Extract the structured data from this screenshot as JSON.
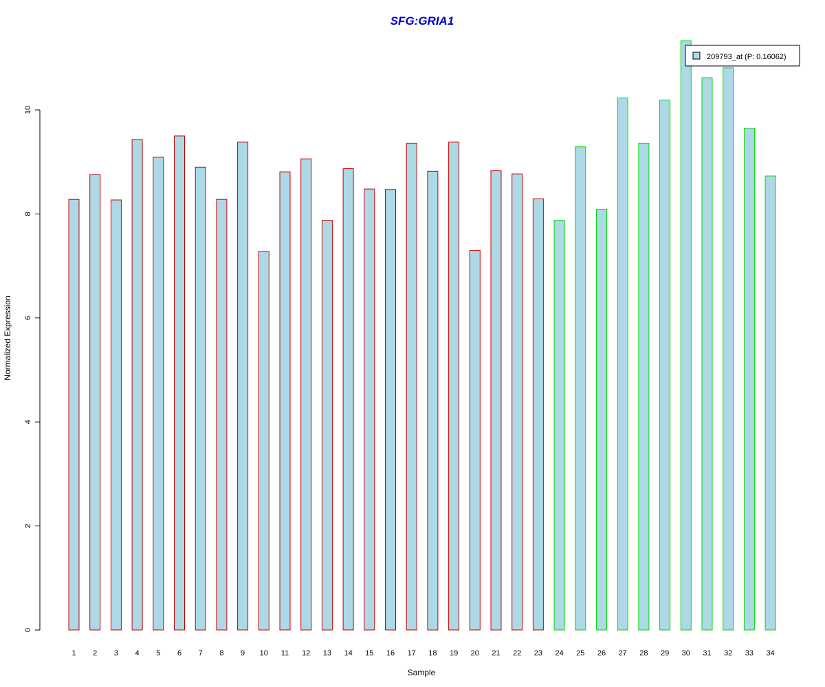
{
  "chart_data": {
    "type": "bar",
    "title": "SFG:GRIA1",
    "xlabel": "Sample",
    "ylabel": "Normalized Expression",
    "ylim": [
      0,
      11.4
    ],
    "yticks": [
      0,
      2,
      4,
      6,
      8,
      10
    ],
    "grid": false,
    "legend_position": "top-right",
    "categories": [
      "1",
      "2",
      "3",
      "4",
      "5",
      "6",
      "7",
      "8",
      "9",
      "10",
      "11",
      "12",
      "13",
      "14",
      "15",
      "16",
      "17",
      "18",
      "19",
      "20",
      "21",
      "22",
      "23",
      "24",
      "25",
      "26",
      "27",
      "28",
      "29",
      "30",
      "31",
      "32",
      "33",
      "34"
    ],
    "series": [
      {
        "name": "209793_at (P: 0.16062)",
        "values": [
          8.28,
          8.76,
          8.27,
          9.43,
          9.09,
          9.5,
          8.9,
          8.28,
          9.38,
          7.28,
          8.81,
          9.06,
          7.88,
          8.87,
          8.48,
          8.47,
          9.36,
          8.82,
          9.38,
          7.3,
          8.83,
          8.77,
          8.29,
          7.88,
          9.29,
          8.09,
          10.23,
          9.36,
          10.19,
          11.33,
          10.62,
          10.81,
          9.65,
          8.73
        ]
      }
    ],
    "group_borders": [
      "#cc0000",
      "#cc0000",
      "#cc0000",
      "#cc0000",
      "#cc0000",
      "#cc0000",
      "#cc0000",
      "#cc0000",
      "#cc0000",
      "#cc0000",
      "#cc0000",
      "#cc0000",
      "#cc0000",
      "#cc0000",
      "#cc0000",
      "#cc0000",
      "#cc0000",
      "#cc0000",
      "#cc0000",
      "#cc0000",
      "#cc0000",
      "#cc0000",
      "#cc0000",
      "#00dd00",
      "#00dd00",
      "#00dd00",
      "#00dd00",
      "#00dd00",
      "#00dd00",
      "#00dd00",
      "#00dd00",
      "#00dd00",
      "#00dd00",
      "#00dd00"
    ],
    "colors": {
      "bar_fill": "#add8e6",
      "title": "#0000cc",
      "axis": "#000000"
    }
  }
}
